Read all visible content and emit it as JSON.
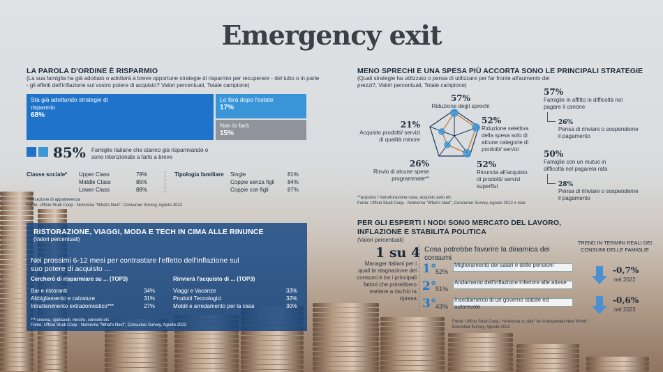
{
  "title": "Emergency exit",
  "s1": {
    "heading": "LA PAROLA D'ORDINE È RISPARMIO",
    "question": "(La sua famiglia ha già adottato o adotterà a breve opportune strategie di risparmio per recuperare - del tutto o in parte - gli effetti dell'inflazione sul vostro potere di acquisto? Valori percentuali, Totale campione)",
    "box1_label": "Sta già adottando strategie di risparmio",
    "box1_value": "68%",
    "box2_label": "Lo farà dopo l'estate",
    "box2_value": "17%",
    "box3_label": "Non lo farà",
    "box3_value": "15%",
    "big_value": "85%",
    "big_text": "Famiglie italiane che stanno già risparmiando o sono intenzionate a farlo a breve",
    "classe_label": "Classe sociale*",
    "classe": [
      {
        "name": "Upper Class",
        "value": "78%"
      },
      {
        "name": "Middle Class",
        "value": "85%"
      },
      {
        "name": "Lower Class",
        "value": "88%"
      }
    ],
    "tipologia_label": "Tipologia familiare",
    "tipologia": [
      {
        "name": "Single",
        "value": "81%"
      },
      {
        "name": "Coppie senza figli",
        "value": "84%"
      },
      {
        "name": "Coppie con figli",
        "value": "87%"
      }
    ],
    "note": "*Percezione di appartenenza",
    "source": "Fonte: Ufficio Studi Coop - Nomisma \"What's Next\", Consumer Survey, Agosto 2022"
  },
  "s2": {
    "heading": "MENO SPRECHI E UNA SPESA PIÙ ACCORTA SONO LE PRINCIPALI STRATEGIE",
    "question": "(Quali strategie ha utilizzato o pensa di utilizzare per far fronte all'aumento dei prezzi?, Valori percentuali, Totale campione)",
    "items": [
      {
        "value": "57%",
        "label": "Riduzione degli sprechi"
      },
      {
        "value": "52%",
        "label": "Riduzione selettiva della spesa solo di alcune categorie di prodotti/ servizi"
      },
      {
        "value": "52%",
        "label": "Rinuncia all'acquisto di prodotti/ servizi superflui"
      },
      {
        "value": "26%",
        "label": "Rinvio di alcune spese programmate**"
      },
      {
        "value": "21%",
        "label": "Acquisto prodotti/ servizi di qualità minore"
      }
    ],
    "right": [
      {
        "value": "57%",
        "label": "Famiglie in affitto in difficoltà nel pagare il canone"
      },
      {
        "value": "26%",
        "label": "Pensa di rinviare o sospenderne il pagamento"
      },
      {
        "value": "50%",
        "label": "Famiglie con un mutuo in difficoltà nel pagarela rata"
      },
      {
        "value": "28%",
        "label": "Pensa di rinviare o sospenderne il pagamento"
      }
    ],
    "note": "**acquisto / ristrutturazione casa, acquisto auto etc.",
    "source": "Fonte: Ufficio Studi Coop - Nomisma \"What's Next\", Consumer Survey, Agosto 2022 e Istat"
  },
  "s3": {
    "heading": "RISTORAZIONE, VIAGGI, MODA E TECH IN CIMA ALLE RINUNCE",
    "sub": "(Valori percentuali)",
    "question": "Nei prossimi 6-12 mesi per contrastare l'effetto dell'inflazione sul suo potere di acquisto ...",
    "col1_head": "Cercherò di risparmiare su ... (TOP3)",
    "col1": [
      {
        "name": "Bar e ristoranti",
        "value": "34%"
      },
      {
        "name": "Abbigliamento e calzature",
        "value": "31%"
      },
      {
        "name": "Intrattenimento extradomestico***",
        "value": "27%"
      }
    ],
    "col2_head": "Rinvierà l'acquisto di ... (TOP3)",
    "col2": [
      {
        "name": "Viaggi e Vacanze",
        "value": "33%"
      },
      {
        "name": "Prodotti Tecnologici",
        "value": "32%"
      },
      {
        "name": "Mobili e arredamento per la casa",
        "value": "30%"
      }
    ],
    "note": "*** cinema, spettacoli, mostre, concerti etc.",
    "source": "Fonte: Ufficio Studi Coop - Nomisma \"What's Next\", Consumer Survey, Agosto 2022"
  },
  "s4": {
    "heading": "PER GLI ESPERTI I NODI SONO MERCATO DEL LAVORO, INFLAZIONE E STABILITÀ POLITICA",
    "sub": "(Valori percentuali)",
    "ratio": "1 su 4",
    "ratio_text": "Manager italiani per i quali la stagnazione dei consumi è tra i principali fattori che potrebbero mettere a rischio la ripresa",
    "question": "Cosa potrebbe favorire la dinamica dei consumi",
    "items": [
      {
        "rank": "1°",
        "value": "52%",
        "label": "Miglioramento dei salari e delle pensioni",
        "fill": 0.52
      },
      {
        "rank": "2°",
        "value": "51%",
        "label": "Andamento dell'inflazione inferiore alle attese",
        "fill": 0.51
      },
      {
        "rank": "3°",
        "value": "43%",
        "label": "Insediamento di un governo stabile ed autorevole",
        "fill": 0.43
      }
    ],
    "trend_head": "TREND IN TERMINI REALI DEI CONSUMI DELLE FAMIGLIE",
    "trend": [
      {
        "value": "-0,7%",
        "year": "nel 2022"
      },
      {
        "value": "-0,6%",
        "year": "nel 2023"
      }
    ],
    "source": "Fonte: Ufficio Studi Coop - Nomisma su dati \"An Unexpected New World\", Executive Survey, Agosto 2022"
  },
  "colors": {
    "box1": "#1f73c9",
    "box2": "#3a95d8",
    "box3": "#8e9499",
    "accent": "#1a7bd0"
  }
}
